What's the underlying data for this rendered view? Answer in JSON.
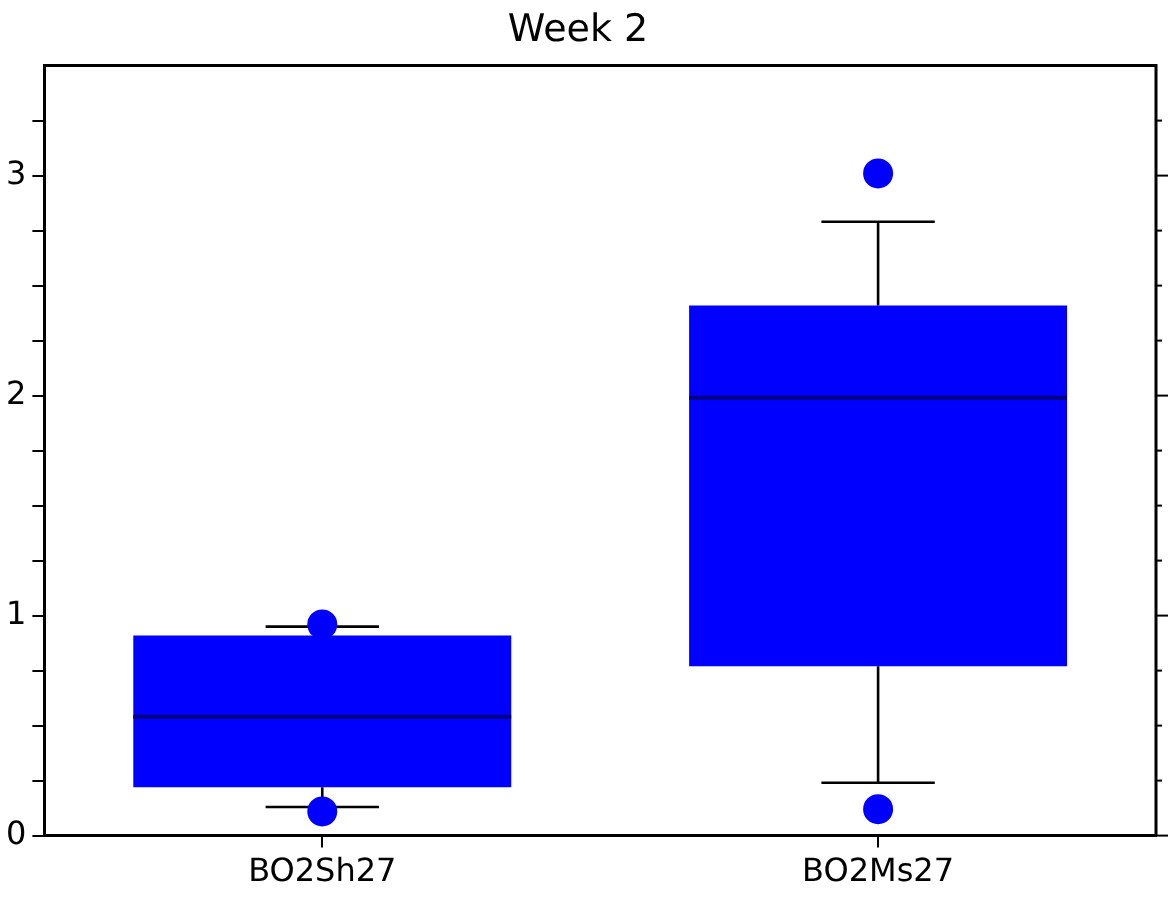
{
  "chart_data": {
    "type": "box",
    "title": "Week 2",
    "categories": [
      "BO2Sh27",
      "BO2Ms27"
    ],
    "series": [
      {
        "color": "#0000ff",
        "boxes": [
          {
            "low": 0.13,
            "q1": 0.22,
            "median": 0.54,
            "q3": 0.91,
            "high": 0.95,
            "outliers": [
              0.96,
              0.11
            ]
          },
          {
            "low": 0.24,
            "q1": 0.77,
            "median": 1.99,
            "q3": 2.41,
            "high": 2.79,
            "outliers": [
              3.01,
              0.12
            ]
          }
        ]
      }
    ],
    "ylim": [
      0,
      3.5
    ],
    "yticks": [
      0,
      {
        "value": 0.25,
        "label": null
      },
      {
        "value": 0.5,
        "label": null
      },
      {
        "value": 0.75,
        "label": null
      },
      1,
      {
        "value": 1.25,
        "label": null
      },
      {
        "value": 1.5,
        "label": null
      },
      {
        "value": 1.75,
        "label": null
      },
      2,
      {
        "value": 2.25,
        "label": null
      },
      {
        "value": 2.5,
        "label": null
      },
      {
        "value": 2.75,
        "label": null
      },
      3,
      {
        "value": 3.25,
        "label": null
      }
    ],
    "grid": false,
    "legend": false,
    "marker": "circle"
  }
}
